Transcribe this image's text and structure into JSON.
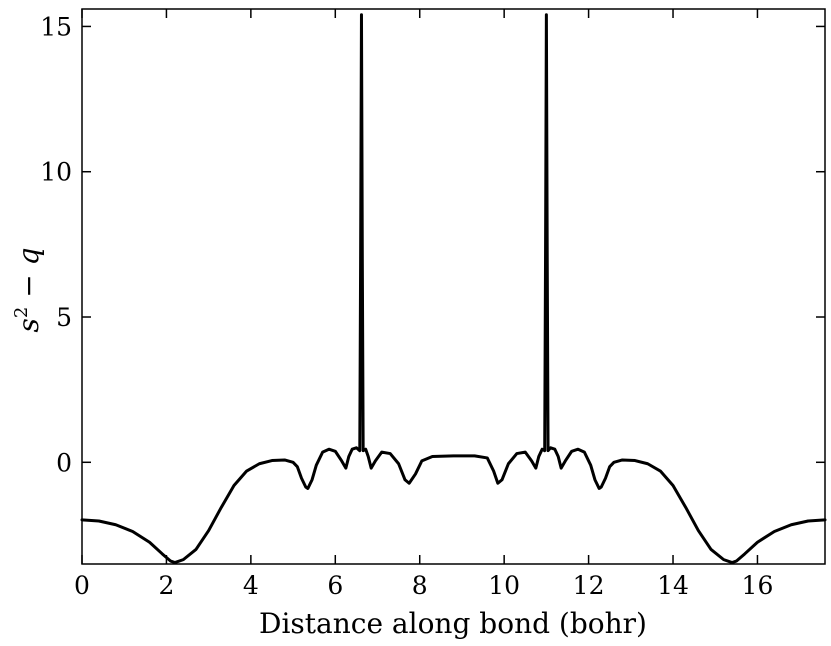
{
  "chart_data": {
    "type": "line",
    "title": "",
    "xlabel": "Distance along bond (bohr)",
    "ylabel_main": "s",
    "ylabel_sup": "2",
    "ylabel_rest": " − q",
    "xlim": [
      0,
      17.6
    ],
    "ylim": [
      -3.5,
      15.6
    ],
    "xticks": [
      0,
      2,
      4,
      6,
      8,
      10,
      12,
      14,
      16
    ],
    "yticks": [
      0,
      5,
      10,
      15
    ],
    "grid": false,
    "color": "#000000",
    "series": [
      {
        "points": [
          [
            0.0,
            -1.98
          ],
          [
            0.4,
            -2.02
          ],
          [
            0.8,
            -2.15
          ],
          [
            1.2,
            -2.38
          ],
          [
            1.6,
            -2.75
          ],
          [
            1.9,
            -3.15
          ],
          [
            2.1,
            -3.4
          ],
          [
            2.2,
            -3.45
          ],
          [
            2.4,
            -3.35
          ],
          [
            2.7,
            -3.0
          ],
          [
            3.0,
            -2.35
          ],
          [
            3.3,
            -1.55
          ],
          [
            3.6,
            -0.8
          ],
          [
            3.9,
            -0.3
          ],
          [
            4.2,
            -0.05
          ],
          [
            4.5,
            0.06
          ],
          [
            4.8,
            0.08
          ],
          [
            5.0,
            0.0
          ],
          [
            5.1,
            -0.15
          ],
          [
            5.2,
            -0.55
          ],
          [
            5.3,
            -0.85
          ],
          [
            5.35,
            -0.9
          ],
          [
            5.45,
            -0.6
          ],
          [
            5.55,
            -0.1
          ],
          [
            5.7,
            0.35
          ],
          [
            5.85,
            0.45
          ],
          [
            6.0,
            0.38
          ],
          [
            6.15,
            0.05
          ],
          [
            6.25,
            -0.2
          ],
          [
            6.32,
            0.2
          ],
          [
            6.4,
            0.45
          ],
          [
            6.5,
            0.5
          ],
          [
            6.58,
            0.4
          ],
          [
            6.6,
            7.0
          ],
          [
            6.62,
            15.4
          ],
          [
            6.64,
            7.0
          ],
          [
            6.66,
            0.4
          ],
          [
            6.72,
            0.45
          ],
          [
            6.78,
            0.2
          ],
          [
            6.85,
            -0.2
          ],
          [
            6.95,
            0.05
          ],
          [
            7.1,
            0.35
          ],
          [
            7.3,
            0.3
          ],
          [
            7.5,
            -0.05
          ],
          [
            7.65,
            -0.6
          ],
          [
            7.75,
            -0.72
          ],
          [
            7.9,
            -0.4
          ],
          [
            8.05,
            0.05
          ],
          [
            8.3,
            0.2
          ],
          [
            8.8,
            0.22
          ],
          [
            9.3,
            0.22
          ],
          [
            9.6,
            0.15
          ],
          [
            9.75,
            -0.3
          ],
          [
            9.85,
            -0.72
          ],
          [
            9.95,
            -0.6
          ],
          [
            10.1,
            -0.05
          ],
          [
            10.3,
            0.3
          ],
          [
            10.5,
            0.35
          ],
          [
            10.65,
            0.05
          ],
          [
            10.75,
            -0.2
          ],
          [
            10.82,
            0.2
          ],
          [
            10.9,
            0.45
          ],
          [
            10.96,
            0.4
          ],
          [
            10.98,
            7.0
          ],
          [
            11.0,
            15.4
          ],
          [
            11.02,
            7.0
          ],
          [
            11.04,
            0.4
          ],
          [
            11.1,
            0.5
          ],
          [
            11.2,
            0.45
          ],
          [
            11.28,
            0.2
          ],
          [
            11.35,
            -0.2
          ],
          [
            11.45,
            0.05
          ],
          [
            11.6,
            0.38
          ],
          [
            11.75,
            0.45
          ],
          [
            11.9,
            0.35
          ],
          [
            12.05,
            -0.1
          ],
          [
            12.15,
            -0.6
          ],
          [
            12.25,
            -0.9
          ],
          [
            12.3,
            -0.85
          ],
          [
            12.4,
            -0.55
          ],
          [
            12.5,
            -0.15
          ],
          [
            12.6,
            0.0
          ],
          [
            12.8,
            0.08
          ],
          [
            13.1,
            0.06
          ],
          [
            13.4,
            -0.05
          ],
          [
            13.7,
            -0.3
          ],
          [
            14.0,
            -0.8
          ],
          [
            14.3,
            -1.55
          ],
          [
            14.6,
            -2.35
          ],
          [
            14.9,
            -3.0
          ],
          [
            15.2,
            -3.35
          ],
          [
            15.4,
            -3.45
          ],
          [
            15.5,
            -3.4
          ],
          [
            15.7,
            -3.15
          ],
          [
            16.0,
            -2.75
          ],
          [
            16.4,
            -2.38
          ],
          [
            16.8,
            -2.15
          ],
          [
            17.2,
            -2.02
          ],
          [
            17.6,
            -1.98
          ]
        ]
      }
    ]
  }
}
